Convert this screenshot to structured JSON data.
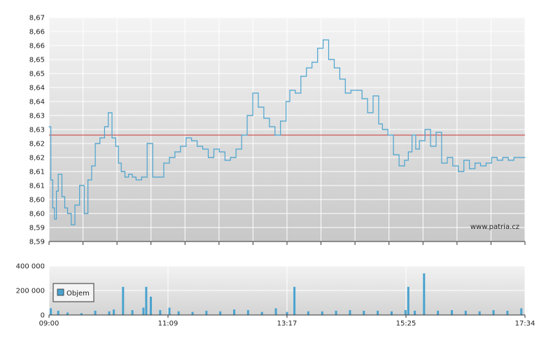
{
  "watermark": "www.patria.cz",
  "colors": {
    "line": "#4aa3cf",
    "reference": "#cc3333",
    "bar": "#4aa3cf",
    "grid": "#ffffff",
    "plot_top": "#f4f4f4",
    "plot_bottom": "#c8c8c8",
    "axis": "#333333"
  },
  "chart_data": [
    {
      "type": "line",
      "title": "",
      "xlabel": "",
      "ylabel": "",
      "x_ticks": [
        "09:00",
        "11:09",
        "13:17",
        "15:25",
        "17:34"
      ],
      "xlim": [
        "09:00",
        "17:34"
      ],
      "y_ticks": [
        "8,67",
        "8,66",
        "8,66",
        "8,65",
        "8,65",
        "8,64",
        "8,64",
        "8,63",
        "8,63",
        "8,62",
        "8,62",
        "8,61",
        "8,61",
        "8,60",
        "8,60",
        "8,59",
        "8,59"
      ],
      "ylim": [
        8.59,
        8.67
      ],
      "reference_line": 8.628,
      "grid": true,
      "series": [
        {
          "x": [
            "09:00",
            "09:02",
            "09:04",
            "09:06",
            "09:08",
            "09:10",
            "09:14",
            "09:17",
            "09:20",
            "09:24",
            "09:28",
            "09:33",
            "09:38",
            "09:42",
            "09:46",
            "09:50",
            "09:55",
            "10:00",
            "10:04",
            "10:08",
            "10:12",
            "10:15",
            "10:18",
            "10:22",
            "10:26",
            "10:30",
            "10:34",
            "10:40",
            "10:46",
            "10:52",
            "10:58",
            "11:04",
            "11:10",
            "11:16",
            "11:22",
            "11:28",
            "11:34",
            "11:40",
            "11:46",
            "11:52",
            "11:58",
            "12:04",
            "12:10",
            "12:16",
            "12:22",
            "12:28",
            "12:34",
            "12:40",
            "12:46",
            "12:52",
            "12:58",
            "13:04",
            "13:10",
            "13:16",
            "13:20",
            "13:26",
            "13:32",
            "13:38",
            "13:44",
            "13:50",
            "13:56",
            "14:02",
            "14:08",
            "14:14",
            "14:20",
            "14:26",
            "14:32",
            "14:38",
            "14:44",
            "14:50",
            "14:56",
            "15:00",
            "15:06",
            "15:12",
            "15:18",
            "15:24",
            "15:28",
            "15:32",
            "15:36",
            "15:40",
            "15:46",
            "15:52",
            "15:58",
            "16:04",
            "16:10",
            "16:16",
            "16:22",
            "16:28",
            "16:34",
            "16:40",
            "16:46",
            "16:52",
            "16:58",
            "17:04",
            "17:10",
            "17:16",
            "17:22",
            "17:28",
            "17:34"
          ],
          "y": [
            8.631,
            8.612,
            8.602,
            8.598,
            8.608,
            8.614,
            8.606,
            8.602,
            8.6,
            8.596,
            8.603,
            8.61,
            8.6,
            8.612,
            8.617,
            8.625,
            8.627,
            8.631,
            8.636,
            8.627,
            8.624,
            8.618,
            8.615,
            8.613,
            8.614,
            8.613,
            8.612,
            8.613,
            8.625,
            8.613,
            8.613,
            8.618,
            8.62,
            8.622,
            8.624,
            8.627,
            8.626,
            8.624,
            8.623,
            8.62,
            8.623,
            8.622,
            8.619,
            8.62,
            8.623,
            8.628,
            8.635,
            8.643,
            8.638,
            8.634,
            8.631,
            8.628,
            8.633,
            8.64,
            8.644,
            8.643,
            8.649,
            8.652,
            8.654,
            8.659,
            8.662,
            8.655,
            8.652,
            8.648,
            8.643,
            8.644,
            8.644,
            8.641,
            8.636,
            8.642,
            8.632,
            8.63,
            8.628,
            8.621,
            8.617,
            8.619,
            8.622,
            8.628,
            8.623,
            8.626,
            8.63,
            8.624,
            8.629,
            8.618,
            8.62,
            8.617,
            8.615,
            8.619,
            8.616,
            8.618,
            8.617,
            8.618,
            8.62,
            8.619,
            8.62,
            8.619,
            8.62,
            8.62,
            8.62
          ]
        }
      ]
    },
    {
      "type": "bar",
      "title": "",
      "xlabel": "",
      "ylabel": "",
      "legend": [
        "Objem"
      ],
      "legend_position": "left",
      "y_ticks": [
        "400 000",
        "200 000",
        "0"
      ],
      "ylim": [
        0,
        400000
      ],
      "x_ticks": [
        "09:00",
        "11:09",
        "13:17",
        "15:25",
        "17:34"
      ],
      "series": [
        {
          "name": "Objem",
          "x": [
            "09:02",
            "09:10",
            "09:20",
            "09:35",
            "09:50",
            "10:05",
            "10:10",
            "10:20",
            "10:30",
            "10:42",
            "10:45",
            "10:50",
            "11:00",
            "11:10",
            "11:20",
            "11:35",
            "11:50",
            "12:05",
            "12:20",
            "12:35",
            "12:50",
            "13:05",
            "13:17",
            "13:25",
            "13:40",
            "13:55",
            "14:10",
            "14:25",
            "14:40",
            "14:55",
            "15:10",
            "15:25",
            "15:28",
            "15:35",
            "15:45",
            "16:00",
            "16:15",
            "16:30",
            "16:45",
            "17:00",
            "17:15",
            "17:30"
          ],
          "values": [
            55000,
            35000,
            20000,
            15000,
            35000,
            30000,
            45000,
            230000,
            40000,
            60000,
            230000,
            150000,
            40000,
            60000,
            30000,
            25000,
            35000,
            30000,
            45000,
            40000,
            25000,
            55000,
            25000,
            230000,
            30000,
            30000,
            35000,
            40000,
            35000,
            35000,
            30000,
            40000,
            230000,
            35000,
            340000,
            35000,
            40000,
            35000,
            30000,
            40000,
            35000,
            55000
          ]
        }
      ]
    }
  ]
}
